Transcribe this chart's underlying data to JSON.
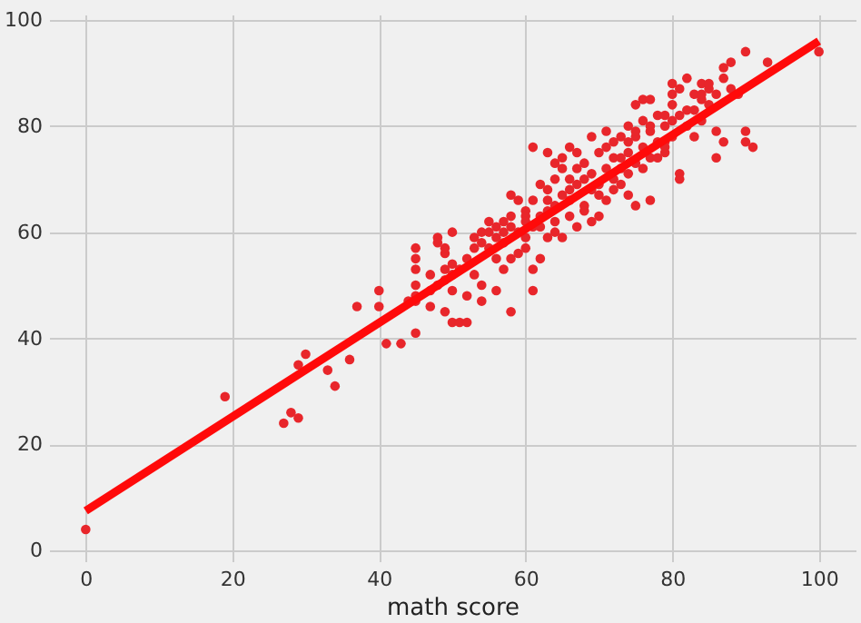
{
  "chart_data": {
    "type": "scatter",
    "xlabel": "math score",
    "xlim": [
      -5,
      105
    ],
    "ylim": [
      -2,
      101
    ],
    "xticks": [
      0,
      20,
      40,
      60,
      80,
      100
    ],
    "yticks": [
      0,
      20,
      40,
      60,
      80,
      100
    ],
    "grid": true,
    "series": [
      {
        "marker": "circle",
        "color": "#e8262b",
        "x": [
          0,
          19,
          27,
          28,
          29,
          29,
          30,
          33,
          34,
          36,
          37,
          40,
          40,
          41,
          43,
          44,
          45,
          45,
          45,
          45,
          45,
          45,
          45,
          47,
          47,
          47,
          48,
          48,
          48,
          49,
          49,
          49,
          49,
          49,
          50,
          50,
          50,
          50,
          50,
          51,
          51,
          52,
          52,
          52,
          53,
          53,
          53,
          54,
          54,
          54,
          54,
          55,
          55,
          55,
          56,
          56,
          56,
          56,
          57,
          57,
          57,
          57,
          58,
          58,
          58,
          58,
          58,
          59,
          59,
          59,
          60,
          60,
          60,
          60,
          60,
          61,
          61,
          61,
          61,
          61,
          62,
          62,
          62,
          62,
          63,
          63,
          63,
          63,
          63,
          64,
          64,
          64,
          64,
          64,
          65,
          65,
          65,
          65,
          66,
          66,
          66,
          66,
          66,
          67,
          67,
          67,
          67,
          68,
          68,
          68,
          68,
          69,
          69,
          69,
          69,
          70,
          70,
          70,
          70,
          71,
          71,
          71,
          71,
          72,
          72,
          72,
          72,
          73,
          73,
          73,
          73,
          74,
          74,
          74,
          74,
          74,
          75,
          75,
          75,
          75,
          75,
          76,
          76,
          76,
          76,
          77,
          77,
          77,
          77,
          77,
          78,
          78,
          78,
          79,
          79,
          79,
          79,
          79,
          80,
          80,
          80,
          80,
          80,
          81,
          81,
          81,
          81,
          82,
          82,
          82,
          83,
          83,
          83,
          84,
          84,
          84,
          84,
          85,
          85,
          85,
          86,
          86,
          86,
          87,
          87,
          87,
          88,
          88,
          89,
          90,
          90,
          90,
          91,
          93,
          100
        ],
        "values": [
          4,
          29,
          24,
          26,
          25,
          35,
          37,
          34,
          31,
          36,
          46,
          46,
          49,
          39,
          39,
          47,
          41,
          48,
          50,
          53,
          55,
          57,
          47,
          46,
          49,
          52,
          50,
          59,
          58,
          51,
          56,
          53,
          45,
          57,
          52,
          49,
          60,
          43,
          54,
          53,
          43,
          55,
          48,
          43,
          59,
          57,
          52,
          60,
          50,
          58,
          47,
          62,
          57,
          60,
          59,
          55,
          61,
          49,
          62,
          53,
          60,
          58,
          61,
          67,
          45,
          63,
          55,
          66,
          60,
          56,
          64,
          63,
          57,
          59,
          62,
          76,
          61,
          49,
          66,
          53,
          63,
          55,
          61,
          69,
          75,
          68,
          64,
          59,
          66,
          70,
          62,
          73,
          65,
          60,
          74,
          67,
          59,
          72,
          68,
          63,
          76,
          70,
          66,
          72,
          61,
          69,
          75,
          70,
          65,
          64,
          73,
          71,
          62,
          68,
          78,
          75,
          67,
          69,
          63,
          72,
          66,
          79,
          76,
          74,
          70,
          77,
          68,
          78,
          72,
          74,
          69,
          80,
          75,
          77,
          67,
          71,
          84,
          78,
          79,
          65,
          73,
          85,
          72,
          76,
          81,
          85,
          66,
          79,
          80,
          74,
          82,
          77,
          74,
          80,
          82,
          77,
          75,
          76,
          88,
          81,
          78,
          84,
          86,
          71,
          70,
          82,
          87,
          89,
          83,
          80,
          86,
          78,
          83,
          88,
          85,
          86,
          81,
          84,
          87,
          88,
          86,
          74,
          79,
          89,
          77,
          91,
          92,
          87,
          86,
          94,
          79,
          77,
          76,
          92,
          94
        ]
      },
      {
        "type": "line",
        "color": "#ff0a0a",
        "x": [
          0,
          100
        ],
        "values": [
          7.5,
          96
        ]
      }
    ]
  }
}
